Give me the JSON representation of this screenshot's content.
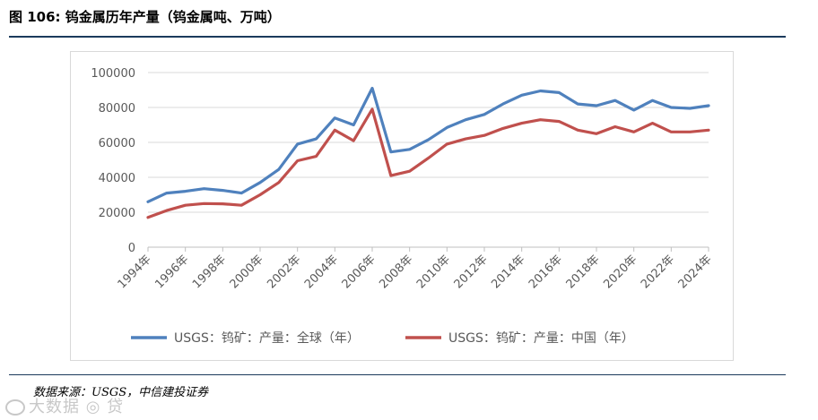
{
  "figure": {
    "title": "图 106: 钨金属历年产量（钨金属吨、万吨）",
    "source": "数据来源：USGS，中信建投证券",
    "watermark": "大数据 ◎ 贷"
  },
  "chart_data": {
    "type": "line",
    "title": "",
    "xlabel": "",
    "ylabel": "",
    "ylim": [
      0,
      100000
    ],
    "yticks": [
      0,
      20000,
      40000,
      60000,
      80000,
      100000
    ],
    "x": [
      1994,
      1995,
      1996,
      1997,
      1998,
      1999,
      2000,
      2001,
      2002,
      2003,
      2004,
      2005,
      2006,
      2007,
      2008,
      2009,
      2010,
      2011,
      2012,
      2013,
      2014,
      2015,
      2016,
      2017,
      2018,
      2019,
      2020,
      2021,
      2022,
      2023,
      2024
    ],
    "xtick_labels": [
      "1994年",
      "1996年",
      "1998年",
      "2000年",
      "2002年",
      "2004年",
      "2006年",
      "2008年",
      "2010年",
      "2012年",
      "2014年",
      "2016年",
      "2018年",
      "2020年",
      "2022年",
      "2024年"
    ],
    "grid": true,
    "legend_position": "bottom",
    "series": [
      {
        "name": "USGS：钨矿：产量：全球（年）",
        "color": "#4f81bd",
        "values": [
          26000,
          31000,
          32000,
          33500,
          32500,
          31000,
          37000,
          44500,
          59000,
          62000,
          74000,
          70000,
          91000,
          54500,
          56000,
          61500,
          68500,
          73000,
          76000,
          82000,
          87000,
          89500,
          88500,
          82000,
          81000,
          84000,
          78500,
          84000,
          80000,
          79500,
          81000
        ]
      },
      {
        "name": "USGS：钨矿：产量：中国（年）",
        "color": "#c0504d",
        "values": [
          17000,
          21000,
          24000,
          25000,
          24800,
          24000,
          30000,
          37000,
          49500,
          52000,
          67000,
          61000,
          79000,
          41000,
          43500,
          51000,
          59000,
          62000,
          64000,
          68000,
          71000,
          73000,
          72000,
          67000,
          65000,
          69000,
          66000,
          71000,
          66000,
          66000,
          67000
        ]
      }
    ]
  }
}
